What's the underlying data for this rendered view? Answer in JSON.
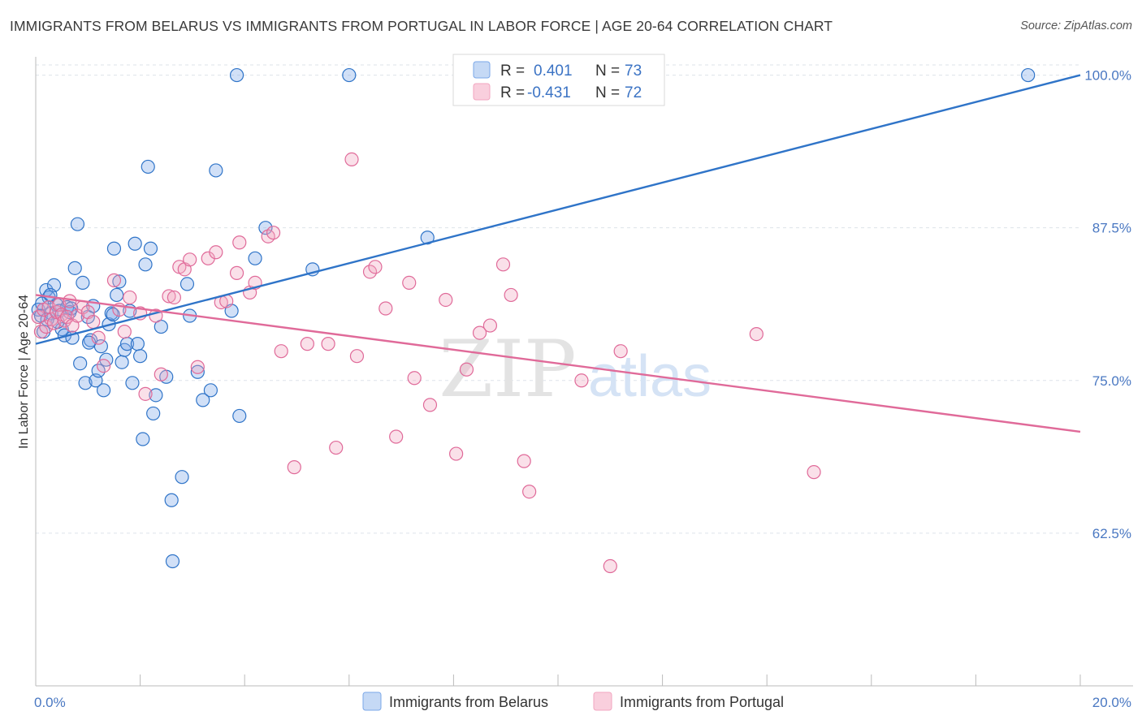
{
  "title": "IMMIGRANTS FROM BELARUS VS IMMIGRANTS FROM PORTUGAL IN LABOR FORCE | AGE 20-64 CORRELATION CHART",
  "source": "Source: ZipAtlas.com",
  "watermark": {
    "zip": "ZIP",
    "atlas": "atlas"
  },
  "colors": {
    "belarus": "#7aa7e8",
    "belarus_line": "#2f74c8",
    "portugal": "#f2a6c0",
    "portugal_line": "#e06a99",
    "tick": "#4a78c2",
    "grid": "#dde3ea"
  },
  "chart_data": {
    "type": "scatter",
    "xlabel": "",
    "ylabel": "In Labor Force | Age 20-64",
    "xlim": [
      0,
      20
    ],
    "ylim": [
      50,
      101.5
    ],
    "x_tick_labels": [
      "0.0%",
      "20.0%"
    ],
    "y_ticks": [
      62.5,
      75.0,
      87.5,
      100.0
    ],
    "y_tick_labels": [
      "62.5%",
      "75.0%",
      "87.5%",
      "100.0%"
    ],
    "grid": true,
    "legend_position": "top-center",
    "stats": [
      {
        "r_label": "R =",
        "r_value": "0.401",
        "n_label": "N =",
        "n_value": "73"
      },
      {
        "r_label": "R =",
        "r_value": "-0.431",
        "n_label": "N =",
        "n_value": "72"
      }
    ],
    "series": [
      {
        "name": "Immigrants from Belarus",
        "trend": [
          [
            0,
            78.0
          ],
          [
            20,
            100.0
          ]
        ],
        "points": [
          [
            0.05,
            80.8
          ],
          [
            0.1,
            80.3
          ],
          [
            0.15,
            79.0
          ],
          [
            0.2,
            82.4
          ],
          [
            0.25,
            81.8
          ],
          [
            0.3,
            80.5
          ],
          [
            0.35,
            82.8
          ],
          [
            0.4,
            81.2
          ],
          [
            0.45,
            80.7
          ],
          [
            0.5,
            79.2
          ],
          [
            0.55,
            78.7
          ],
          [
            0.6,
            81.0
          ],
          [
            0.65,
            80.6
          ],
          [
            0.7,
            78.5
          ],
          [
            0.75,
            84.2
          ],
          [
            0.8,
            87.8
          ],
          [
            0.85,
            76.4
          ],
          [
            0.9,
            83.0
          ],
          [
            0.95,
            74.8
          ],
          [
            1.0,
            80.2
          ],
          [
            1.05,
            78.3
          ],
          [
            1.1,
            81.1
          ],
          [
            1.15,
            75.0
          ],
          [
            1.2,
            75.8
          ],
          [
            1.25,
            77.8
          ],
          [
            1.3,
            74.2
          ],
          [
            1.35,
            76.7
          ],
          [
            1.4,
            79.6
          ],
          [
            1.45,
            80.5
          ],
          [
            1.5,
            85.8
          ],
          [
            1.55,
            82.0
          ],
          [
            1.6,
            83.1
          ],
          [
            1.65,
            76.5
          ],
          [
            1.7,
            77.5
          ],
          [
            1.75,
            78.0
          ],
          [
            1.8,
            80.7
          ],
          [
            1.85,
            74.8
          ],
          [
            1.9,
            86.2
          ],
          [
            1.95,
            78.0
          ],
          [
            2.0,
            77.0
          ],
          [
            2.05,
            70.2
          ],
          [
            2.1,
            84.5
          ],
          [
            2.15,
            92.5
          ],
          [
            2.2,
            85.8
          ],
          [
            2.25,
            72.3
          ],
          [
            2.3,
            73.8
          ],
          [
            2.4,
            79.4
          ],
          [
            2.5,
            75.3
          ],
          [
            2.6,
            65.2
          ],
          [
            2.62,
            60.2
          ],
          [
            2.8,
            67.1
          ],
          [
            2.9,
            82.9
          ],
          [
            2.95,
            80.3
          ],
          [
            3.1,
            75.7
          ],
          [
            3.2,
            73.4
          ],
          [
            3.35,
            74.2
          ],
          [
            3.45,
            92.2
          ],
          [
            3.75,
            80.7
          ],
          [
            3.85,
            100.0
          ],
          [
            3.9,
            72.1
          ],
          [
            4.2,
            85.0
          ],
          [
            4.4,
            87.5
          ],
          [
            5.3,
            84.1
          ],
          [
            6.0,
            100.0
          ],
          [
            7.5,
            86.7
          ],
          [
            19.0,
            100.0
          ],
          [
            0.12,
            81.3
          ],
          [
            0.28,
            82.0
          ],
          [
            0.42,
            79.8
          ],
          [
            0.68,
            80.9
          ],
          [
            1.02,
            78.1
          ],
          [
            1.48,
            80.4
          ],
          [
            0.22,
            80.0
          ]
        ]
      },
      {
        "name": "Immigrants from Portugal",
        "trend": [
          [
            0,
            82.0
          ],
          [
            20,
            70.8
          ]
        ],
        "points": [
          [
            0.05,
            80.2
          ],
          [
            0.1,
            79.0
          ],
          [
            0.15,
            80.8
          ],
          [
            0.2,
            79.4
          ],
          [
            0.25,
            81.0
          ],
          [
            0.3,
            80.0
          ],
          [
            0.35,
            79.7
          ],
          [
            0.4,
            80.6
          ],
          [
            0.45,
            81.2
          ],
          [
            0.5,
            80.4
          ],
          [
            0.55,
            79.9
          ],
          [
            0.6,
            80.2
          ],
          [
            0.65,
            81.5
          ],
          [
            0.7,
            79.5
          ],
          [
            0.8,
            80.3
          ],
          [
            0.9,
            81.0
          ],
          [
            1.0,
            80.6
          ],
          [
            1.1,
            79.8
          ],
          [
            1.2,
            78.5
          ],
          [
            1.3,
            76.2
          ],
          [
            1.5,
            83.2
          ],
          [
            1.6,
            80.8
          ],
          [
            1.7,
            79.0
          ],
          [
            1.8,
            81.8
          ],
          [
            2.0,
            80.5
          ],
          [
            2.1,
            73.9
          ],
          [
            2.3,
            80.3
          ],
          [
            2.4,
            75.5
          ],
          [
            2.55,
            81.9
          ],
          [
            2.65,
            81.8
          ],
          [
            2.75,
            84.3
          ],
          [
            2.85,
            84.1
          ],
          [
            2.95,
            84.9
          ],
          [
            3.1,
            76.1
          ],
          [
            3.3,
            85.0
          ],
          [
            3.45,
            85.5
          ],
          [
            3.55,
            81.4
          ],
          [
            3.65,
            81.5
          ],
          [
            3.85,
            83.8
          ],
          [
            3.9,
            86.3
          ],
          [
            4.1,
            82.2
          ],
          [
            4.2,
            83.0
          ],
          [
            4.45,
            86.8
          ],
          [
            4.55,
            87.1
          ],
          [
            4.7,
            77.4
          ],
          [
            4.95,
            67.9
          ],
          [
            5.2,
            78.0
          ],
          [
            5.6,
            78.0
          ],
          [
            5.75,
            69.5
          ],
          [
            6.05,
            93.1
          ],
          [
            6.15,
            77.0
          ],
          [
            6.4,
            83.9
          ],
          [
            6.5,
            84.3
          ],
          [
            6.7,
            80.9
          ],
          [
            6.9,
            70.4
          ],
          [
            7.15,
            83.0
          ],
          [
            7.25,
            75.2
          ],
          [
            7.55,
            73.0
          ],
          [
            7.85,
            81.6
          ],
          [
            8.05,
            69.0
          ],
          [
            8.25,
            75.9
          ],
          [
            8.5,
            78.9
          ],
          [
            8.7,
            79.5
          ],
          [
            8.95,
            84.5
          ],
          [
            9.1,
            82.0
          ],
          [
            9.35,
            68.4
          ],
          [
            9.45,
            65.9
          ],
          [
            10.45,
            75.0
          ],
          [
            11.0,
            59.8
          ],
          [
            11.2,
            77.4
          ],
          [
            13.8,
            78.8
          ],
          [
            14.9,
            67.5
          ]
        ]
      }
    ]
  },
  "legend_bottom": [
    "Immigrants from Belarus",
    "Immigrants from Portugal"
  ]
}
